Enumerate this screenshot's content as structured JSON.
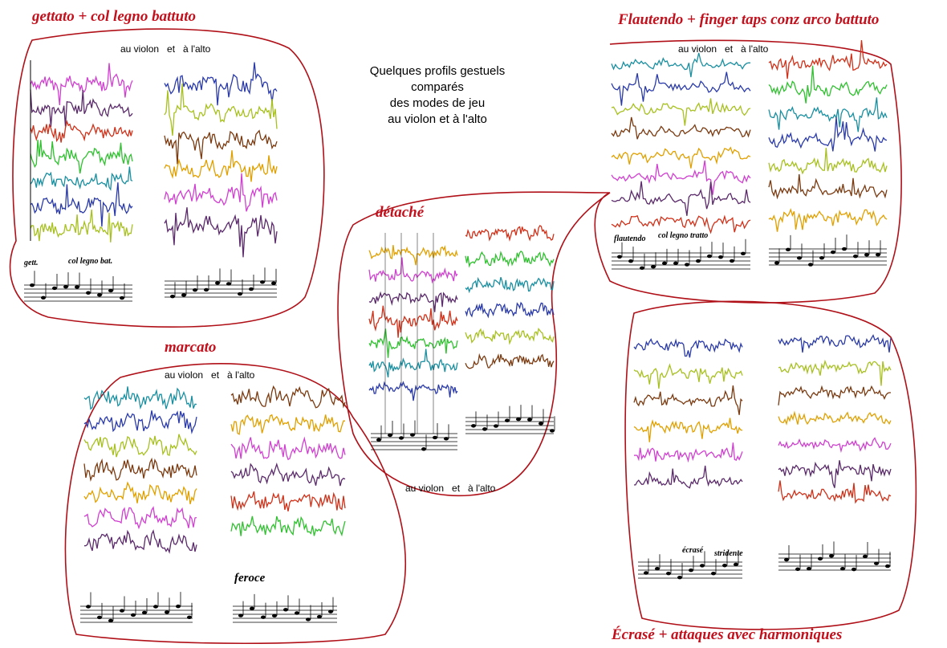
{
  "header": {
    "title_lines": [
      "Quelques profils gestuels",
      "comparés",
      "des modes de jeu",
      "au violon et à l'alto"
    ]
  },
  "panels": [
    {
      "title": "gettato + col legno battuto",
      "caption": "au violon   et   à l'alto",
      "annotations": [
        "gett.",
        "col legno bat."
      ]
    },
    {
      "title": "Flautendo + finger taps conz arco battuto",
      "caption": "au violon   et   à l'alto",
      "annotations": [
        "flautendo",
        "col legno tratto"
      ]
    },
    {
      "title": "détaché",
      "caption": "au violon   et   à l'alto",
      "annotations": []
    },
    {
      "title": "marcato",
      "caption": "au violon   et   à l'alto",
      "annotations": [
        "feroce"
      ]
    },
    {
      "title": "Écrasé + attaques avec harmoniques",
      "caption": "",
      "annotations": [
        "écrasé",
        "stridente"
      ]
    }
  ]
}
